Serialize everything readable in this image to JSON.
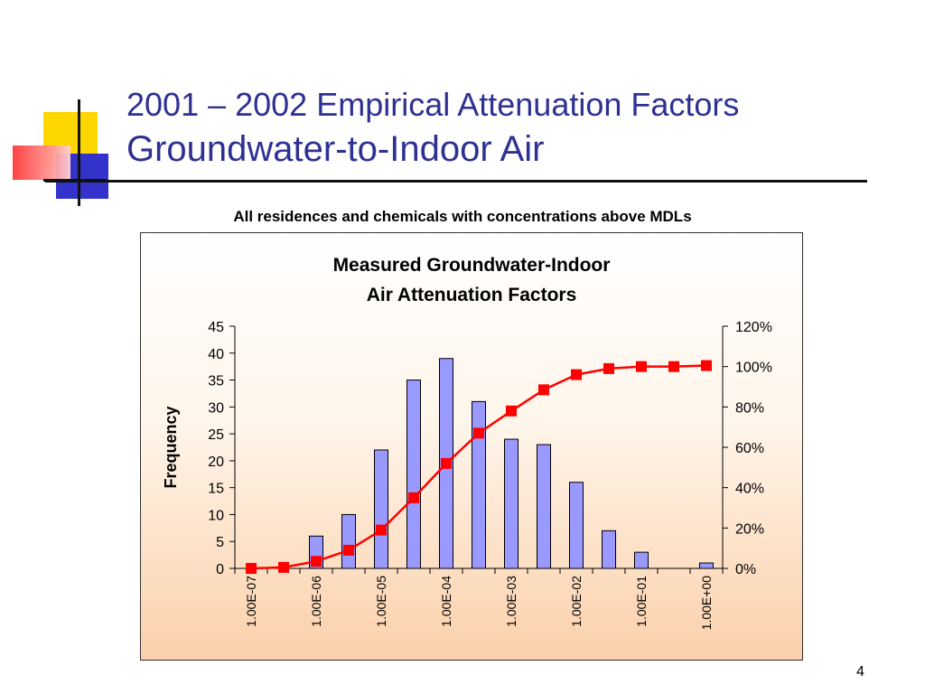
{
  "slide": {
    "title_line1": "2001 – 2002 Empirical Attenuation Factors",
    "title_line2": "Groundwater-to-Indoor Air",
    "subtitle": "All residences and chemicals with concentrations above MDLs",
    "page_number": "4",
    "title_color": "#2e3192"
  },
  "chart_data": {
    "type": "bar",
    "title": "Measured Groundwater-Indoor\nAir Attenuation Factors",
    "ylabel": "Frequency",
    "ylim": [
      0,
      45
    ],
    "y_ticks": [
      0,
      5,
      10,
      15,
      20,
      25,
      30,
      35,
      40,
      45
    ],
    "y2lim": [
      0,
      120
    ],
    "y2_ticks": [
      "0%",
      "20%",
      "40%",
      "60%",
      "80%",
      "100%",
      "120%"
    ],
    "x_tick_labels": [
      "1.00E-07",
      "1.00E-06",
      "1.00E-05",
      "1.00E-04",
      "1.00E-03",
      "1.00E-02",
      "1.00E-01",
      "1.00E+00"
    ],
    "bin_count": 15,
    "series": [
      {
        "values": [
          0,
          0,
          6,
          10,
          22,
          35,
          39,
          31,
          24,
          23,
          16,
          7,
          3,
          0,
          1
        ],
        "color": "#9999ff"
      },
      {
        "values": [
          0,
          0.5,
          3.5,
          9,
          19,
          35,
          52,
          67,
          78,
          88.5,
          96,
          99,
          100,
          100,
          100.5
        ],
        "color": "#ff0000",
        "axis": "secondary",
        "type": "line"
      }
    ],
    "grid": false,
    "legend": "none"
  }
}
